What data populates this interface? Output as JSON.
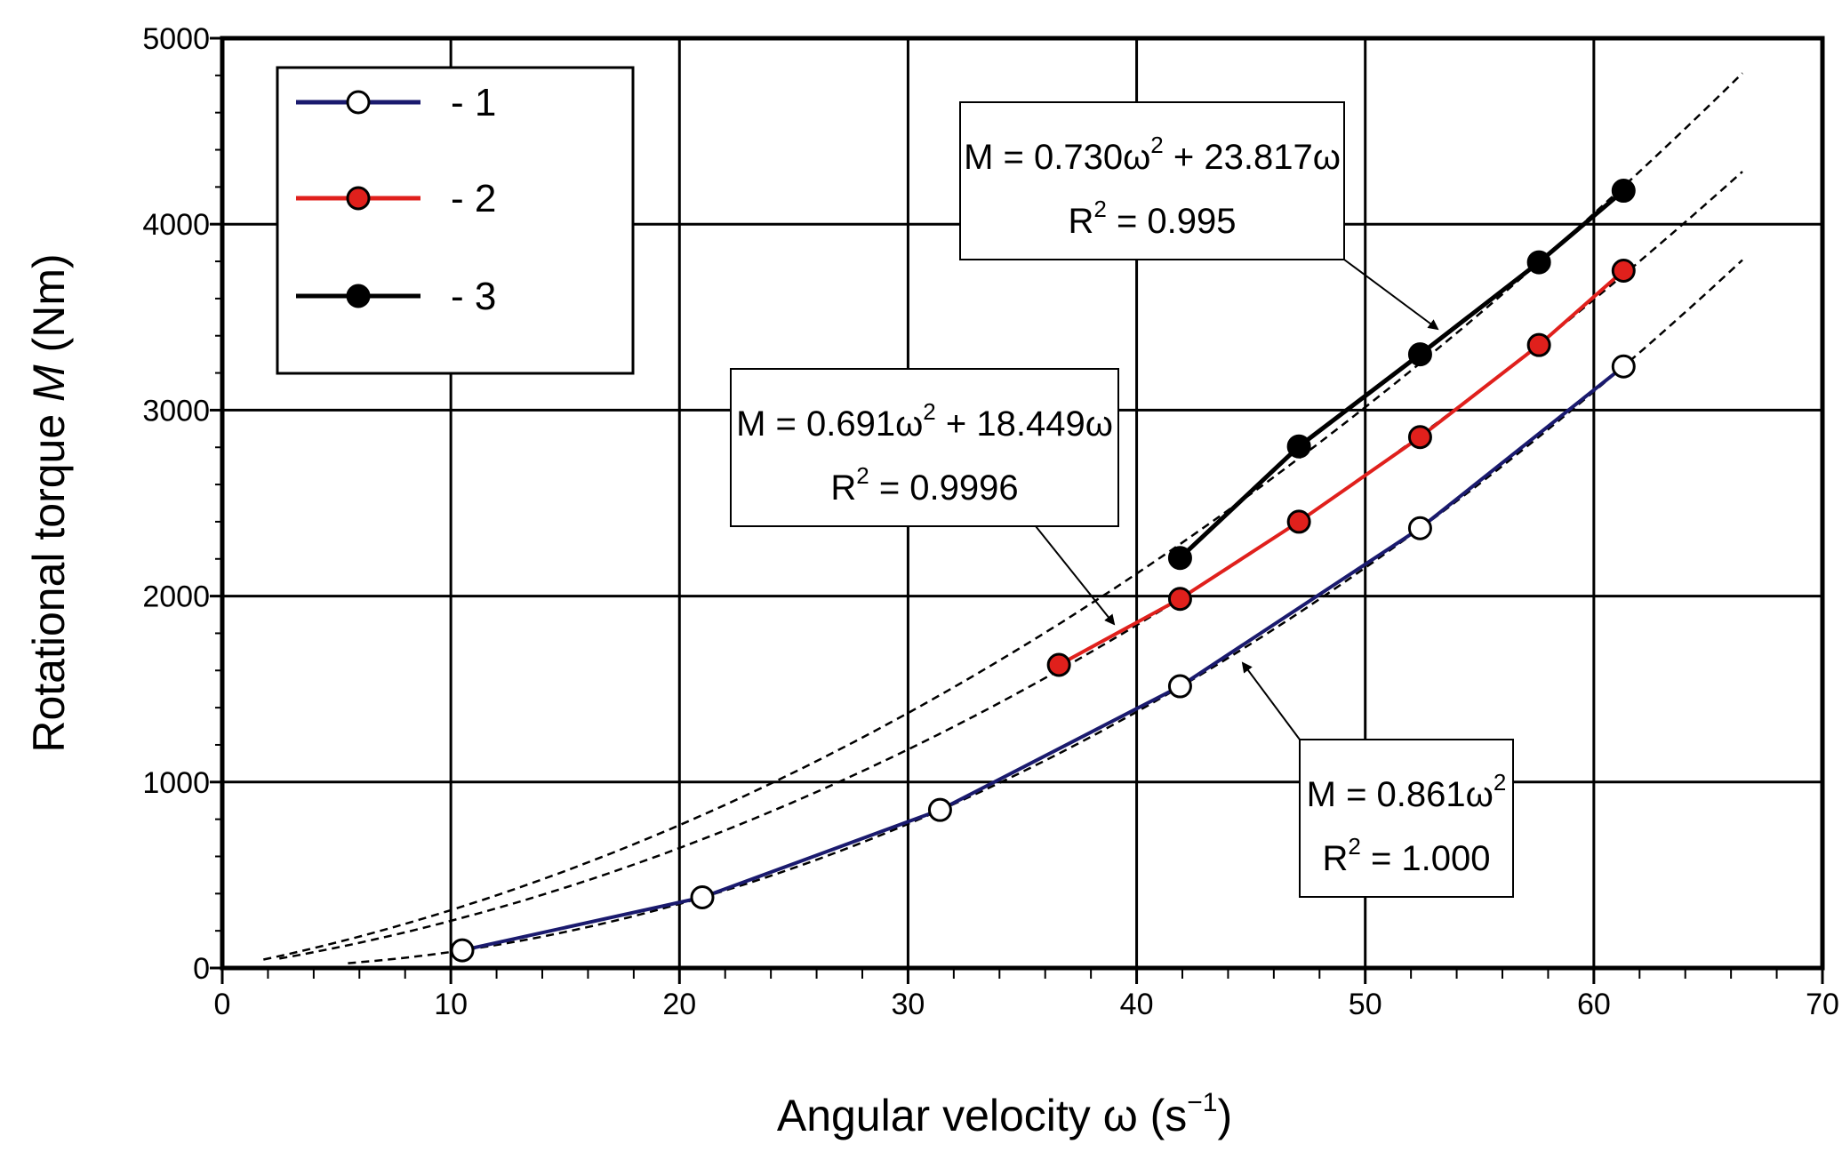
{
  "chart_data": {
    "type": "line",
    "title": "",
    "xlabel": "Angular velocity ω (s⁻¹)",
    "xlabel_main": "Angular velocity ω (s",
    "xlabel_sup": "−1",
    "xlabel_end": ")",
    "ylabel": "Rotational torque M (Nm)",
    "ylabel_pre": "Rotational torque ",
    "ylabel_var": "M",
    "ylabel_post": " (Nm)",
    "xlim": [
      0,
      70
    ],
    "ylim": [
      0,
      5000
    ],
    "xticks": [
      0,
      10,
      20,
      30,
      40,
      50,
      60,
      70
    ],
    "yticks": [
      0,
      1000,
      2000,
      3000,
      4000,
      5000
    ],
    "grid": true,
    "legend_position": "top-left",
    "series": [
      {
        "name": "- 1",
        "color": "#1a1a6e",
        "marker": "open-circle",
        "x": [
          10.5,
          21.0,
          31.4,
          41.9,
          52.4,
          61.3
        ],
        "y": [
          95,
          380,
          850,
          1515,
          2365,
          3235
        ],
        "fit": {
          "a": 0.861,
          "b": 0,
          "x_range": [
            5.5,
            66.5
          ]
        }
      },
      {
        "name": "- 2",
        "color": "#e0201c",
        "marker": "red-circle",
        "x": [
          36.6,
          41.9,
          47.1,
          52.4,
          57.6,
          61.3
        ],
        "y": [
          1630,
          1985,
          2400,
          2855,
          3350,
          3750
        ],
        "fit": {
          "a": 0.691,
          "b": 18.449,
          "x_range": [
            2.5,
            66.5
          ]
        }
      },
      {
        "name": "- 3",
        "color": "#000000",
        "marker": "filled-circle",
        "x": [
          41.9,
          47.1,
          52.4,
          57.6,
          61.3
        ],
        "y": [
          2205,
          2805,
          3300,
          3795,
          4180
        ],
        "fit": {
          "a": 0.73,
          "b": 23.817,
          "x_range": [
            1.8,
            66.5
          ]
        }
      }
    ],
    "annotations": [
      {
        "line1_a": "M = 0.730ω",
        "line1_sup": "2",
        "line1_b": " + 23.817ω",
        "line2_a": "R",
        "line2_sup": "2",
        "line2_b": " = 0.995"
      },
      {
        "line1_a": "M = 0.691ω",
        "line1_sup": "2",
        "line1_b": " + 18.449ω",
        "line2_a": "R",
        "line2_sup": "2",
        "line2_b": " = 0.9996"
      },
      {
        "line1_a": "M = 0.861ω",
        "line1_sup": "2",
        "line1_b": "",
        "line2_a": "R",
        "line2_sup": "2",
        "line2_b": " = 1.000"
      }
    ]
  }
}
